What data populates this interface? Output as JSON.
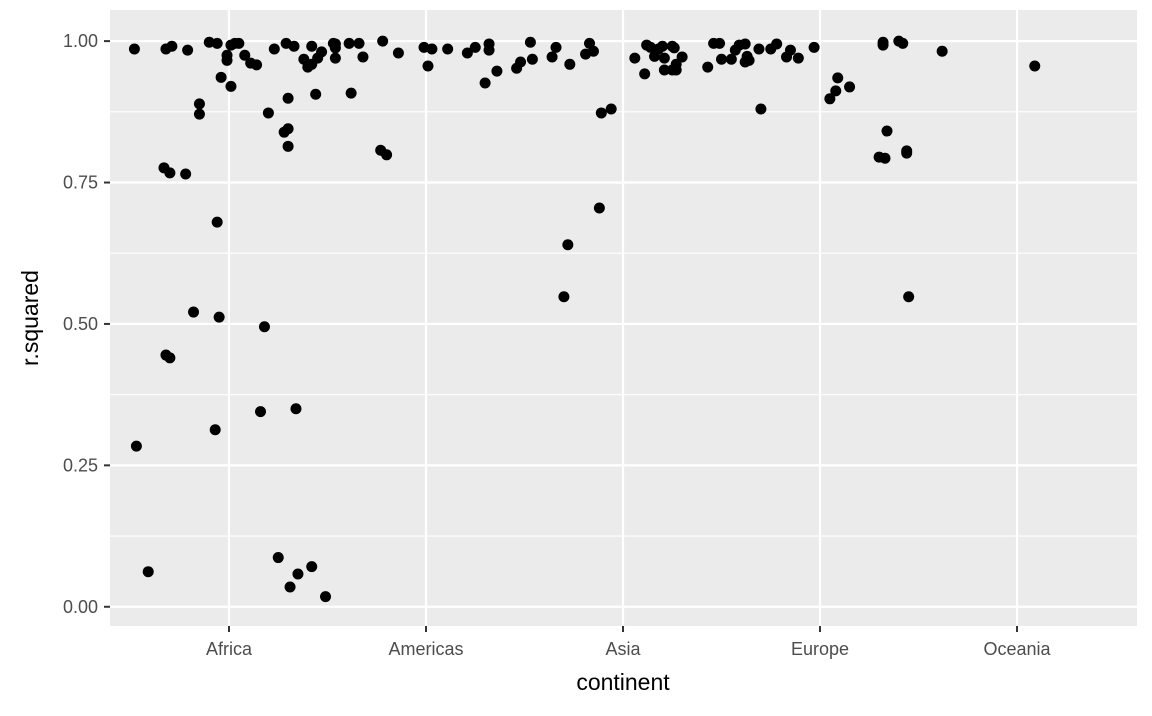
{
  "chart_data": {
    "type": "scatter",
    "title": "",
    "xlabel": "continent",
    "ylabel": "r.squared",
    "categories": [
      "Africa",
      "Americas",
      "Asia",
      "Europe",
      "Oceania"
    ],
    "xlim": [
      0.396,
      5.609
    ],
    "ylim": [
      -0.034,
      1.055
    ],
    "yticks": [
      0.0,
      0.25,
      0.5,
      0.75,
      1.0
    ],
    "ytick_labels": [
      "0.00",
      "0.25",
      "0.50",
      "0.75",
      "1.00"
    ],
    "grid": true,
    "legend": "none",
    "colors": {
      "panel": "#EBEBEB",
      "grid": "#FFFFFF",
      "point": "#000000",
      "tick_text": "#4D4D4D"
    },
    "points": [
      [
        0.52,
        0.986
      ],
      [
        0.59,
        0.062
      ],
      [
        0.53,
        0.284
      ],
      [
        0.68,
        0.986
      ],
      [
        0.71,
        0.991
      ],
      [
        0.79,
        0.984
      ],
      [
        0.67,
        0.776
      ],
      [
        0.7,
        0.767
      ],
      [
        0.78,
        0.765
      ],
      [
        0.68,
        0.445
      ],
      [
        0.7,
        0.44
      ],
      [
        0.82,
        0.521
      ],
      [
        0.85,
        0.889
      ],
      [
        0.85,
        0.871
      ],
      [
        0.9,
        0.998
      ],
      [
        0.94,
        0.996
      ],
      [
        0.94,
        0.68
      ],
      [
        0.95,
        0.512
      ],
      [
        0.93,
        0.313
      ],
      [
        0.96,
        0.936
      ],
      [
        0.99,
        0.975
      ],
      [
        0.99,
        0.966
      ],
      [
        1.01,
        0.92
      ],
      [
        1.01,
        0.993
      ],
      [
        1.03,
        0.996
      ],
      [
        1.05,
        0.996
      ],
      [
        1.08,
        0.975
      ],
      [
        1.11,
        0.961
      ],
      [
        1.14,
        0.958
      ],
      [
        1.18,
        0.495
      ],
      [
        1.16,
        0.345
      ],
      [
        1.2,
        0.873
      ],
      [
        1.23,
        0.986
      ],
      [
        1.25,
        0.087
      ],
      [
        1.29,
        0.996
      ],
      [
        1.3,
        0.899
      ],
      [
        1.3,
        0.845
      ],
      [
        1.28,
        0.839
      ],
      [
        1.3,
        0.814
      ],
      [
        1.31,
        0.035
      ],
      [
        1.33,
        0.991
      ],
      [
        1.35,
        0.058
      ],
      [
        1.34,
        0.35
      ],
      [
        1.38,
        0.968
      ],
      [
        1.4,
        0.954
      ],
      [
        1.42,
        0.991
      ],
      [
        1.42,
        0.071
      ],
      [
        1.44,
        0.906
      ],
      [
        1.45,
        0.97
      ],
      [
        1.47,
        0.981
      ],
      [
        1.49,
        0.018
      ],
      [
        1.53,
        0.996
      ],
      [
        1.54,
        0.995
      ],
      [
        1.54,
        0.97
      ],
      [
        1.54,
        0.988
      ],
      [
        1.61,
        0.996
      ],
      [
        1.62,
        0.908
      ],
      [
        1.66,
        0.996
      ],
      [
        1.68,
        0.972
      ],
      [
        1.42,
        0.959
      ],
      [
        1.77,
        0.807
      ],
      [
        1.8,
        0.799
      ],
      [
        1.78,
        1.0
      ],
      [
        1.86,
        0.979
      ],
      [
        1.99,
        0.989
      ],
      [
        2.03,
        0.986
      ],
      [
        2.01,
        0.956
      ],
      [
        2.11,
        0.986
      ],
      [
        2.21,
        0.979
      ],
      [
        2.25,
        0.989
      ],
      [
        2.3,
        0.926
      ],
      [
        2.32,
        0.995
      ],
      [
        2.32,
        0.984
      ],
      [
        2.36,
        0.947
      ],
      [
        2.46,
        0.952
      ],
      [
        2.48,
        0.963
      ],
      [
        2.53,
        0.998
      ],
      [
        2.54,
        0.968
      ],
      [
        2.64,
        0.972
      ],
      [
        2.66,
        0.989
      ],
      [
        2.7,
        0.548
      ],
      [
        2.72,
        0.64
      ],
      [
        2.73,
        0.959
      ],
      [
        2.81,
        0.977
      ],
      [
        2.83,
        0.996
      ],
      [
        2.85,
        0.982
      ],
      [
        2.88,
        0.705
      ],
      [
        2.89,
        0.873
      ],
      [
        2.94,
        0.88
      ],
      [
        3.06,
        0.97
      ],
      [
        3.11,
        0.942
      ],
      [
        3.12,
        0.993
      ],
      [
        3.14,
        0.989
      ],
      [
        3.16,
        0.973
      ],
      [
        3.18,
        0.986
      ],
      [
        3.2,
        0.991
      ],
      [
        3.21,
        0.97
      ],
      [
        3.21,
        0.949
      ],
      [
        3.25,
        0.949
      ],
      [
        3.25,
        0.991
      ],
      [
        3.26,
        0.988
      ],
      [
        3.27,
        0.959
      ],
      [
        3.27,
        0.949
      ],
      [
        3.3,
        0.972
      ],
      [
        3.43,
        0.954
      ],
      [
        3.46,
        0.996
      ],
      [
        3.49,
        0.996
      ],
      [
        3.5,
        0.968
      ],
      [
        3.55,
        0.968
      ],
      [
        3.57,
        0.984
      ],
      [
        3.59,
        0.993
      ],
      [
        3.62,
        0.995
      ],
      [
        3.62,
        0.963
      ],
      [
        3.63,
        0.973
      ],
      [
        3.64,
        0.966
      ],
      [
        3.69,
        0.986
      ],
      [
        3.7,
        0.88
      ],
      [
        3.75,
        0.986
      ],
      [
        3.78,
        0.995
      ],
      [
        3.83,
        0.972
      ],
      [
        3.85,
        0.984
      ],
      [
        3.89,
        0.97
      ],
      [
        3.97,
        0.989
      ],
      [
        4.05,
        0.898
      ],
      [
        4.08,
        0.912
      ],
      [
        4.09,
        0.935
      ],
      [
        4.15,
        0.919
      ],
      [
        4.3,
        0.795
      ],
      [
        4.33,
        0.793
      ],
      [
        4.34,
        0.841
      ],
      [
        4.32,
        0.998
      ],
      [
        4.32,
        0.993
      ],
      [
        4.4,
        1.0
      ],
      [
        4.42,
        0.996
      ],
      [
        4.44,
        0.806
      ],
      [
        4.44,
        0.802
      ],
      [
        4.45,
        0.548
      ],
      [
        4.62,
        0.982
      ],
      [
        5.09,
        0.956
      ]
    ]
  }
}
